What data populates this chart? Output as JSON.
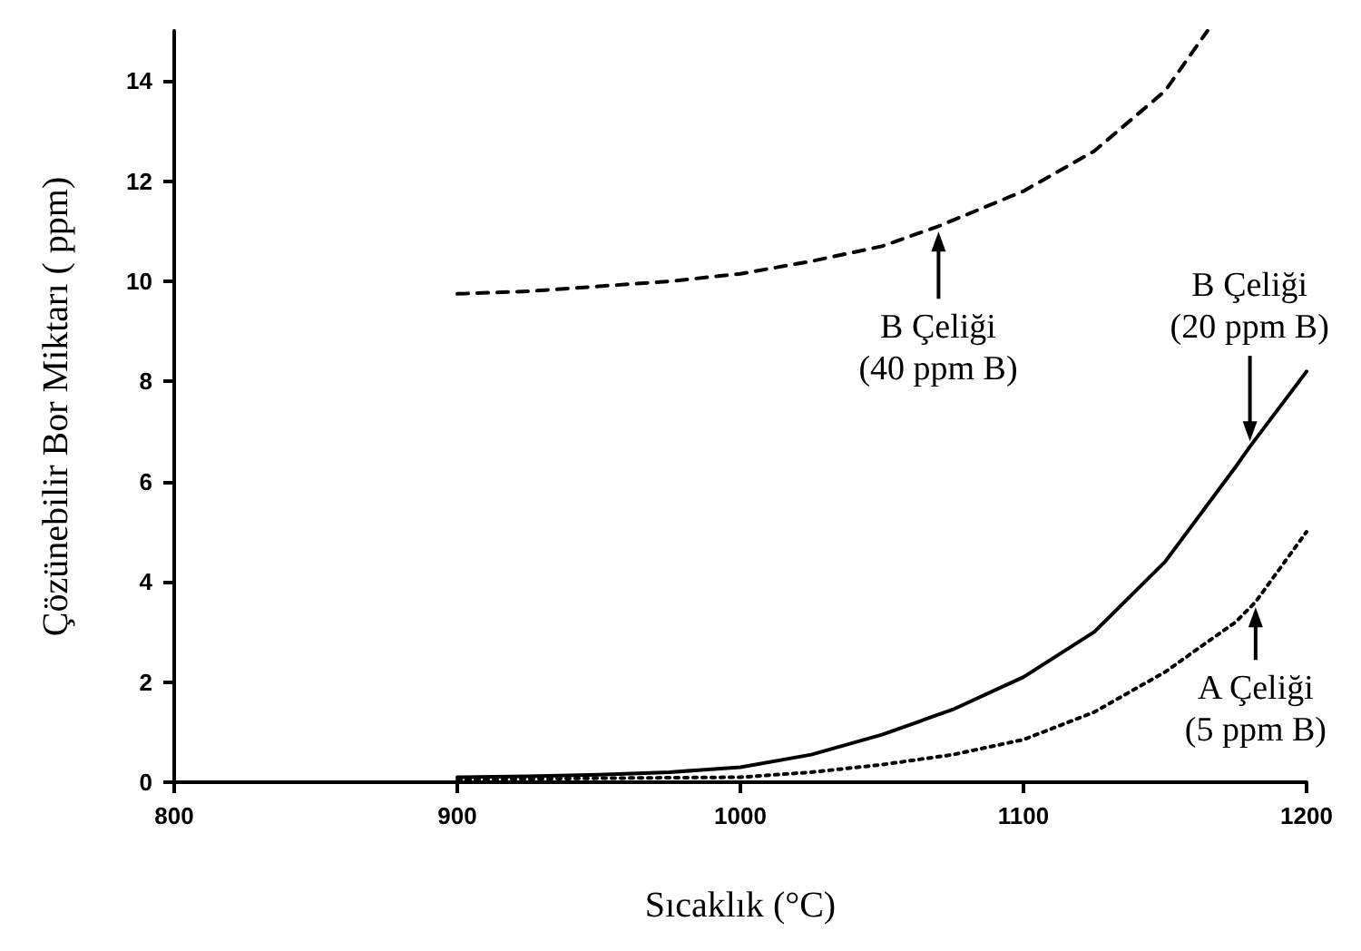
{
  "chart_data": {
    "type": "line",
    "xlabel": "Sıcaklık (°C)",
    "ylabel": "Çözünebilir Bor Miktarı ( ppm)",
    "xlim": [
      800,
      1200
    ],
    "xticks": [
      800,
      900,
      1000,
      1100,
      1200
    ],
    "ylim": [
      0,
      15
    ],
    "yticks": [
      0,
      2,
      4,
      6,
      8,
      10,
      12,
      14
    ],
    "grid": false,
    "marker": "none",
    "series": [
      {
        "color": "#000000",
        "line_style": "dashed",
        "x": [
          900,
          925,
          950,
          975,
          1000,
          1025,
          1050,
          1070,
          1100,
          1125,
          1150,
          1165
        ],
        "values": [
          9.75,
          9.8,
          9.9,
          10.0,
          10.15,
          10.4,
          10.7,
          11.1,
          11.8,
          12.6,
          13.8,
          15
        ]
      },
      {
        "color": "#000000",
        "line_style": "solid",
        "x": [
          900,
          925,
          950,
          975,
          1000,
          1025,
          1050,
          1075,
          1100,
          1125,
          1150,
          1175,
          1180,
          1200
        ],
        "values": [
          0.1,
          0.12,
          0.15,
          0.2,
          0.3,
          0.55,
          0.95,
          1.45,
          2.1,
          3.0,
          4.4,
          6.3,
          6.7,
          8.2
        ]
      },
      {
        "color": "#000000",
        "line_style": "dotted",
        "x": [
          900,
          950,
          1000,
          1025,
          1050,
          1075,
          1100,
          1125,
          1150,
          1175,
          1182,
          1200
        ],
        "values": [
          0.05,
          0.08,
          0.1,
          0.2,
          0.35,
          0.55,
          0.85,
          1.4,
          2.2,
          3.2,
          3.6,
          5.0
        ]
      }
    ],
    "annotations": [
      {
        "text": "B Çeliği\n(40 ppm B)",
        "x": 1070,
        "y": 11.1
      },
      {
        "text": "B Çeliği\n(20 ppm B)",
        "x": 1180,
        "y": 6.7
      },
      {
        "text": "A Çeliği\n(5 ppm B)",
        "x": 1182,
        "y": 3.6
      }
    ]
  }
}
